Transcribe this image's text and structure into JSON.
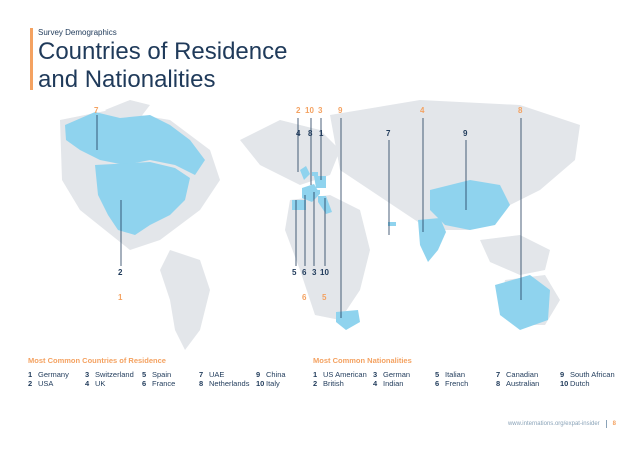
{
  "header": {
    "kicker": "Survey Demographics",
    "title_line1": "Countries of Residence",
    "title_line2": "and Nationalities"
  },
  "map_labels": {
    "top": [
      "7",
      "2",
      "10",
      "3",
      "9",
      "4",
      "8"
    ],
    "second": [
      "4",
      "8",
      "1",
      "7",
      "9"
    ],
    "lower": [
      "2",
      "1",
      "5",
      "6",
      "3",
      "10",
      "6",
      "5"
    ]
  },
  "residence": {
    "title": "Most Common Countries of Residence",
    "items": [
      {
        "n": "1",
        "t": "Germany"
      },
      {
        "n": "2",
        "t": "USA"
      },
      {
        "n": "3",
        "t": "Switzerland"
      },
      {
        "n": "4",
        "t": "UK"
      },
      {
        "n": "5",
        "t": "Spain"
      },
      {
        "n": "6",
        "t": "France"
      },
      {
        "n": "7",
        "t": "UAE"
      },
      {
        "n": "8",
        "t": "Netherlands"
      },
      {
        "n": "9",
        "t": "China"
      },
      {
        "n": "10",
        "t": "Italy"
      }
    ]
  },
  "nationalities": {
    "title": "Most Common Nationalities",
    "items": [
      {
        "n": "1",
        "t": "US American"
      },
      {
        "n": "2",
        "t": "British"
      },
      {
        "n": "3",
        "t": "German"
      },
      {
        "n": "4",
        "t": "Indian"
      },
      {
        "n": "5",
        "t": "Italian"
      },
      {
        "n": "6",
        "t": "French"
      },
      {
        "n": "7",
        "t": "Canadian"
      },
      {
        "n": "8",
        "t": "Australian"
      },
      {
        "n": "9",
        "t": "South African"
      },
      {
        "n": "10",
        "t": "Dutch"
      }
    ]
  },
  "footer": {
    "url": "www.internations.org/expat-insider",
    "page": "8"
  },
  "colors": {
    "accent": "#f4a261",
    "navy": "#1f3a5a",
    "highlight": "#8fd3ee",
    "land": "#e3e6ea"
  }
}
